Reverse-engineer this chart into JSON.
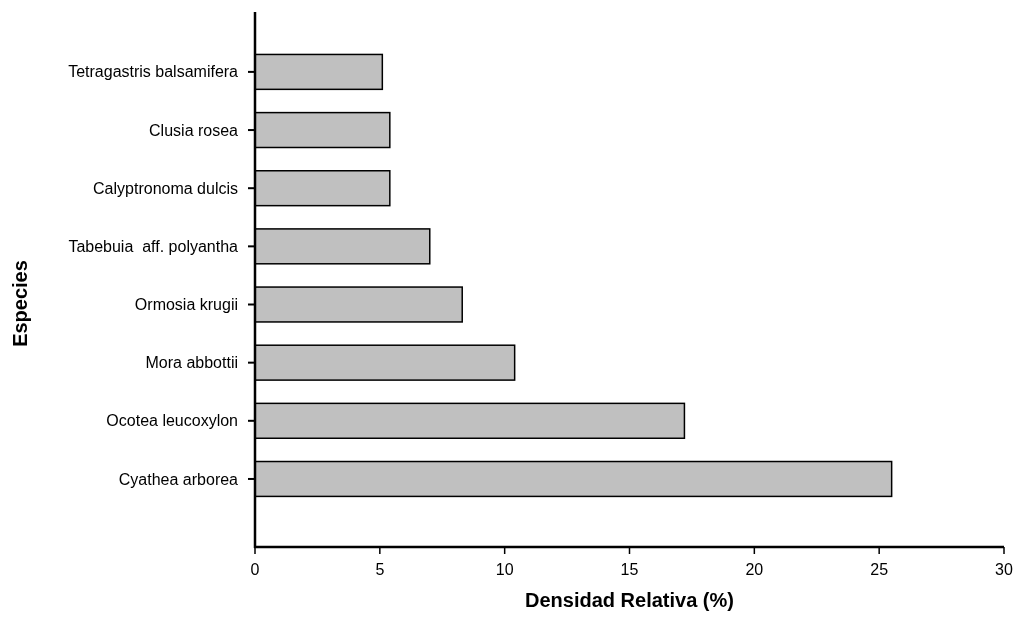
{
  "chart_data": {
    "type": "bar",
    "orientation": "horizontal",
    "categories": [
      "Tetragastris balsamifera",
      "Clusia rosea",
      "Calyptronoma dulcis",
      "Tabebuia  aff. polyantha",
      "Ormosia krugii",
      "Mora abbottii",
      "Ocotea leucoxylon",
      "Cyathea arborea"
    ],
    "values": [
      5.1,
      5.4,
      5.4,
      7.0,
      8.3,
      10.4,
      17.2,
      25.5
    ],
    "color": "#c0c0c0",
    "xlim": [
      0,
      30
    ],
    "xticks": [
      0,
      5,
      10,
      15,
      20,
      25,
      30
    ],
    "xlabel": "Densidad Relativa (%)",
    "ylabel": "Especies"
  }
}
